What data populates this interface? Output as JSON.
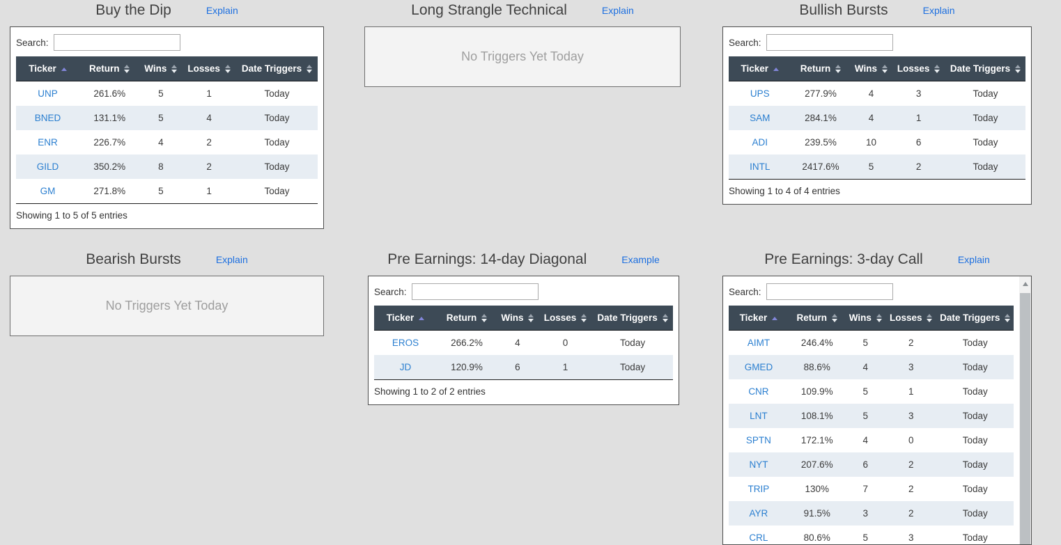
{
  "colors": {
    "page_bg": "#e0e0e0",
    "header_bg": "#3d4a56",
    "stripe": "#e7edf3",
    "ticker_blue": "#2b7fd0",
    "link_blue": "#1c6fe0",
    "sort_active": "#8185d8"
  },
  "labels": {
    "search": "Search:"
  },
  "columns": [
    {
      "key": "ticker",
      "label": "Ticker",
      "sort": "asc"
    },
    {
      "key": "return",
      "label": "Return",
      "sort": "both"
    },
    {
      "key": "wins",
      "label": "Wins",
      "sort": "both"
    },
    {
      "key": "losses",
      "label": "Losses",
      "sort": "both"
    },
    {
      "key": "date_triggers",
      "label": "Date Triggers",
      "sort": "both"
    }
  ],
  "panels": [
    {
      "title": "Buy the Dip",
      "link": "Explain",
      "type": "table",
      "showing": "Showing 1 to 5 of 5 entries",
      "rows": [
        {
          "ticker": "UNP",
          "return": "261.6%",
          "wins": "5",
          "losses": "1",
          "date_triggers": "Today"
        },
        {
          "ticker": "BNED",
          "return": "131.1%",
          "wins": "5",
          "losses": "4",
          "date_triggers": "Today"
        },
        {
          "ticker": "ENR",
          "return": "226.7%",
          "wins": "4",
          "losses": "2",
          "date_triggers": "Today"
        },
        {
          "ticker": "GILD",
          "return": "350.2%",
          "wins": "8",
          "losses": "2",
          "date_triggers": "Today"
        },
        {
          "ticker": "GM",
          "return": "271.8%",
          "wins": "5",
          "losses": "1",
          "date_triggers": "Today"
        }
      ]
    },
    {
      "title": "Long Strangle Technical",
      "link": "Explain",
      "type": "empty",
      "empty_text": "No Triggers Yet Today"
    },
    {
      "title": "Bullish Bursts",
      "link": "Explain",
      "type": "table",
      "showing": "Showing 1 to 4 of 4 entries",
      "rows": [
        {
          "ticker": "UPS",
          "return": "277.9%",
          "wins": "4",
          "losses": "3",
          "date_triggers": "Today"
        },
        {
          "ticker": "SAM",
          "return": "284.1%",
          "wins": "4",
          "losses": "1",
          "date_triggers": "Today"
        },
        {
          "ticker": "ADI",
          "return": "239.5%",
          "wins": "10",
          "losses": "6",
          "date_triggers": "Today"
        },
        {
          "ticker": "INTL",
          "return": "2417.6%",
          "wins": "5",
          "losses": "2",
          "date_triggers": "Today"
        }
      ]
    },
    {
      "title": "Bearish Bursts",
      "link": "Explain",
      "type": "empty",
      "empty_text": "No Triggers Yet Today"
    },
    {
      "title": "Pre Earnings: 14-day Diagonal",
      "link": "Example",
      "type": "table",
      "showing": "Showing 1 to 2 of 2 entries",
      "rows": [
        {
          "ticker": "EROS",
          "return": "266.2%",
          "wins": "4",
          "losses": "0",
          "date_triggers": "Today"
        },
        {
          "ticker": "JD",
          "return": "120.9%",
          "wins": "6",
          "losses": "1",
          "date_triggers": "Today"
        }
      ]
    },
    {
      "title": "Pre Earnings: 3-day Call",
      "link": "Explain",
      "type": "table-scroll",
      "rows": [
        {
          "ticker": "AIMT",
          "return": "246.4%",
          "wins": "5",
          "losses": "2",
          "date_triggers": "Today"
        },
        {
          "ticker": "GMED",
          "return": "88.6%",
          "wins": "4",
          "losses": "3",
          "date_triggers": "Today"
        },
        {
          "ticker": "CNR",
          "return": "109.9%",
          "wins": "5",
          "losses": "1",
          "date_triggers": "Today"
        },
        {
          "ticker": "LNT",
          "return": "108.1%",
          "wins": "5",
          "losses": "3",
          "date_triggers": "Today"
        },
        {
          "ticker": "SPTN",
          "return": "172.1%",
          "wins": "4",
          "losses": "0",
          "date_triggers": "Today"
        },
        {
          "ticker": "NYT",
          "return": "207.6%",
          "wins": "6",
          "losses": "2",
          "date_triggers": "Today"
        },
        {
          "ticker": "TRIP",
          "return": "130%",
          "wins": "7",
          "losses": "2",
          "date_triggers": "Today"
        },
        {
          "ticker": "AYR",
          "return": "91.5%",
          "wins": "3",
          "losses": "2",
          "date_triggers": "Today"
        },
        {
          "ticker": "CRL",
          "return": "80.6%",
          "wins": "5",
          "losses": "3",
          "date_triggers": "Today"
        }
      ]
    }
  ]
}
